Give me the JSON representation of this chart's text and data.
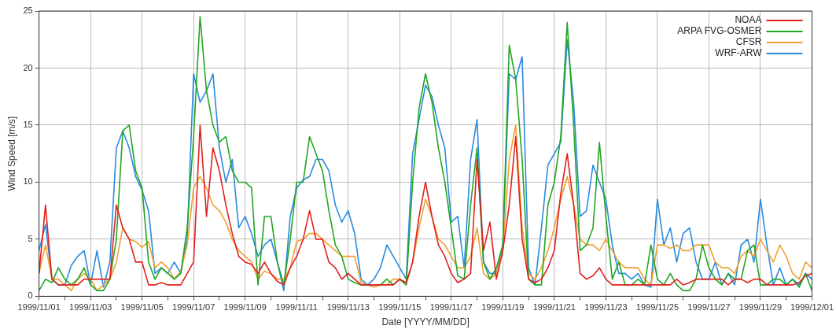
{
  "chart_data": {
    "type": "line",
    "xlabel": "Date [YYYY/MM/DD]",
    "ylabel": "Wind Speed [m/s]",
    "x": [
      "1999-11-01T00:00",
      "1999-11-01T06:00",
      "1999-11-01T12:00",
      "1999-11-01T18:00",
      "1999-11-02T00:00",
      "1999-11-02T06:00",
      "1999-11-02T12:00",
      "1999-11-02T18:00",
      "1999-11-03T00:00",
      "1999-11-03T06:00",
      "1999-11-03T12:00",
      "1999-11-03T18:00",
      "1999-11-04T00:00",
      "1999-11-04T06:00",
      "1999-11-04T12:00",
      "1999-11-04T18:00",
      "1999-11-05T00:00",
      "1999-11-05T06:00",
      "1999-11-05T12:00",
      "1999-11-05T18:00",
      "1999-11-06T00:00",
      "1999-11-06T06:00",
      "1999-11-06T12:00",
      "1999-11-06T18:00",
      "1999-11-07T00:00",
      "1999-11-07T06:00",
      "1999-11-07T12:00",
      "1999-11-07T18:00",
      "1999-11-08T00:00",
      "1999-11-08T06:00",
      "1999-11-08T12:00",
      "1999-11-08T18:00",
      "1999-11-09T00:00",
      "1999-11-09T06:00",
      "1999-11-09T12:00",
      "1999-11-09T18:00",
      "1999-11-10T00:00",
      "1999-11-10T06:00",
      "1999-11-10T12:00",
      "1999-11-10T18:00",
      "1999-11-11T00:00",
      "1999-11-11T06:00",
      "1999-11-11T12:00",
      "1999-11-11T18:00",
      "1999-11-12T00:00",
      "1999-11-12T06:00",
      "1999-11-12T12:00",
      "1999-11-12T18:00",
      "1999-11-13T00:00",
      "1999-11-13T06:00",
      "1999-11-13T12:00",
      "1999-11-13T18:00",
      "1999-11-14T00:00",
      "1999-11-14T06:00",
      "1999-11-14T12:00",
      "1999-11-14T18:00",
      "1999-11-15T00:00",
      "1999-11-15T06:00",
      "1999-11-15T12:00",
      "1999-11-15T18:00",
      "1999-11-16T00:00",
      "1999-11-16T06:00",
      "1999-11-16T12:00",
      "1999-11-16T18:00",
      "1999-11-17T00:00",
      "1999-11-17T06:00",
      "1999-11-17T12:00",
      "1999-11-17T18:00",
      "1999-11-18T00:00",
      "1999-11-18T06:00",
      "1999-11-18T12:00",
      "1999-11-18T18:00",
      "1999-11-19T00:00",
      "1999-11-19T06:00",
      "1999-11-19T12:00",
      "1999-11-19T18:00",
      "1999-11-20T00:00",
      "1999-11-20T06:00",
      "1999-11-20T12:00",
      "1999-11-20T18:00",
      "1999-11-21T00:00",
      "1999-11-21T06:00",
      "1999-11-21T12:00",
      "1999-11-21T18:00",
      "1999-11-22T00:00",
      "1999-11-22T06:00",
      "1999-11-22T12:00",
      "1999-11-22T18:00",
      "1999-11-23T00:00",
      "1999-11-23T06:00",
      "1999-11-23T12:00",
      "1999-11-23T18:00",
      "1999-11-24T00:00",
      "1999-11-24T06:00",
      "1999-11-24T12:00",
      "1999-11-24T18:00",
      "1999-11-25T00:00",
      "1999-11-25T06:00",
      "1999-11-25T12:00",
      "1999-11-25T18:00",
      "1999-11-26T00:00",
      "1999-11-26T06:00",
      "1999-11-26T12:00",
      "1999-11-26T18:00",
      "1999-11-27T00:00",
      "1999-11-27T06:00",
      "1999-11-27T12:00",
      "1999-11-27T18:00",
      "1999-11-28T00:00",
      "1999-11-28T06:00",
      "1999-11-28T12:00",
      "1999-11-28T18:00",
      "1999-11-29T00:00",
      "1999-11-29T06:00",
      "1999-11-29T12:00",
      "1999-11-29T18:00",
      "1999-11-30T00:00",
      "1999-11-30T06:00",
      "1999-11-30T12:00",
      "1999-11-30T18:00",
      "1999-12-01T00:00"
    ],
    "series": [
      {
        "name": "NOAA",
        "color": "#e0201c",
        "values": [
          2,
          8,
          1.5,
          1,
          1,
          1,
          1,
          1.5,
          1.5,
          1.5,
          1.5,
          1.5,
          8,
          6,
          5,
          3,
          3,
          1,
          1,
          1.2,
          1,
          1,
          1,
          2,
          3,
          15,
          7,
          13,
          11,
          8,
          5.5,
          3.5,
          3,
          2.8,
          2,
          3,
          2,
          1.3,
          1,
          2.5,
          3.5,
          5,
          7.5,
          5,
          5,
          3,
          2.5,
          1.5,
          2,
          1.5,
          1,
          1,
          1,
          1,
          1,
          1,
          1.5,
          1.2,
          3,
          7,
          10,
          7,
          4.5,
          3.5,
          2,
          1.2,
          1.5,
          2,
          12,
          4,
          6.5,
          1.5,
          4,
          8,
          14,
          5,
          1.5,
          1.2,
          1.5,
          2.5,
          4,
          9,
          12.5,
          8,
          2,
          1.5,
          1.8,
          2.5,
          1.5,
          1,
          1,
          1,
          1,
          1,
          1,
          1,
          1,
          1,
          1,
          1.5,
          1,
          1.2,
          1.5,
          1.5,
          1.5,
          1.5,
          1.5,
          1,
          1.5,
          1.5,
          1.2,
          1.5,
          1.5,
          1,
          1,
          1,
          1,
          1,
          1.2,
          1.8,
          2
        ]
      },
      {
        "name": "ARPA FVG-OSMER",
        "color": "#22a522",
        "values": [
          0.5,
          1.5,
          1.2,
          2.5,
          1.5,
          1,
          1.5,
          2.5,
          1,
          0.5,
          0.5,
          1.5,
          5,
          14.5,
          15,
          11,
          9.5,
          3,
          1.5,
          2.5,
          2,
          1.5,
          2,
          6,
          14,
          24.5,
          18,
          15,
          13.5,
          14,
          11,
          10,
          10,
          9.5,
          1,
          7,
          7,
          3,
          1,
          5,
          10,
          10,
          14,
          12.5,
          11,
          7.5,
          4.5,
          3.5,
          1.5,
          1.2,
          1,
          1,
          1,
          1,
          1.5,
          1,
          1.5,
          1,
          10,
          16.5,
          19.5,
          17,
          13,
          10,
          6,
          1.8,
          1.5,
          8,
          13,
          3,
          1.5,
          2.5,
          4.5,
          22,
          19,
          12,
          1.5,
          1,
          1,
          8,
          10,
          14,
          24,
          15,
          4,
          4.5,
          6,
          13.5,
          7,
          1.5,
          3,
          1,
          1,
          1.5,
          1,
          4.5,
          1.5,
          1,
          2,
          1,
          0.5,
          0.5,
          1.5,
          4.5,
          2.5,
          1.5,
          1,
          2,
          1.5,
          1.5,
          4,
          4.5,
          1,
          1,
          1.5,
          1.5,
          1,
          1.5,
          0.8,
          2,
          0.5
        ]
      },
      {
        "name": "CFSR",
        "color": "#f0a030",
        "values": [
          2,
          4.5,
          1.5,
          1.5,
          1,
          0.5,
          1.5,
          2,
          1.5,
          0.5,
          1,
          1.5,
          3,
          6,
          5,
          4.8,
          4.3,
          4.8,
          2.5,
          3,
          2.5,
          1.5,
          2.2,
          4.5,
          9.5,
          10.5,
          9.5,
          8,
          7.5,
          6.5,
          5,
          4,
          3.5,
          3,
          1.5,
          2.2,
          2,
          1.5,
          1.5,
          2.5,
          4.8,
          5,
          5.5,
          5.5,
          5,
          4.5,
          4,
          3.5,
          3.5,
          3.5,
          1.2,
          1,
          0.8,
          1,
          1,
          1.5,
          1.5,
          1,
          3,
          6,
          8.5,
          7,
          5,
          4.5,
          3.5,
          2.5,
          2.5,
          3.5,
          6,
          2,
          1.5,
          2,
          4,
          12,
          15,
          6,
          2,
          1.5,
          2.5,
          4,
          6,
          8.5,
          10.5,
          8,
          5,
          4.5,
          4.5,
          4,
          5,
          4,
          3,
          2.5,
          2.5,
          2.5,
          1.5,
          1,
          4.5,
          4.5,
          4.2,
          4.5,
          4,
          4,
          4.5,
          4.5,
          4.5,
          3,
          2.5,
          2.5,
          2,
          3.5,
          4,
          3.5,
          5,
          4,
          3,
          4.5,
          3.5,
          2,
          1.5,
          3,
          2.5
        ]
      },
      {
        "name": "WRF-ARW",
        "color": "#2a8ae0",
        "values": [
          4,
          6.3,
          1.5,
          1,
          1,
          2.7,
          3.5,
          4,
          1,
          4,
          0.8,
          3,
          13,
          14.5,
          13,
          10.5,
          9.3,
          7.5,
          2,
          2.5,
          2,
          3,
          2,
          5,
          19.5,
          17,
          18,
          19.5,
          13,
          10,
          12,
          6,
          7,
          5.5,
          3.5,
          4.5,
          5,
          3,
          0.5,
          7,
          9.5,
          10.2,
          10.5,
          12,
          12,
          11,
          8,
          6.5,
          7.5,
          5.5,
          1.5,
          1,
          1.5,
          2.5,
          4.5,
          3.5,
          2.5,
          1.5,
          12.5,
          15.5,
          18.5,
          17.5,
          15,
          13,
          6.5,
          7,
          2.5,
          12,
          15.5,
          3,
          2,
          2,
          4.5,
          19.5,
          19,
          21,
          2.5,
          1,
          6,
          11.5,
          12.5,
          13.5,
          22.5,
          17,
          7,
          7.5,
          11.5,
          10,
          8.5,
          4.5,
          2,
          2,
          1.5,
          2,
          1,
          0.8,
          8.5,
          4.5,
          6,
          3,
          5.5,
          6,
          3,
          1.5,
          1.5,
          3,
          1,
          2,
          1,
          4.5,
          5,
          3,
          8.5,
          4.5,
          1,
          2.5,
          1,
          1.5,
          1,
          2,
          1.5
        ]
      }
    ],
    "xlim": [
      "1999-11-01",
      "1999-12-01"
    ],
    "xticks": [
      {
        "value": "1999-11-01",
        "label": "1999/11/01"
      },
      {
        "value": "1999-11-02",
        "label": null
      },
      {
        "value": "1999-11-03",
        "label": "1999/11/03"
      },
      {
        "value": "1999-11-04",
        "label": null
      },
      {
        "value": "1999-11-05",
        "label": "1999/11/05"
      },
      {
        "value": "1999-11-06",
        "label": null
      },
      {
        "value": "1999-11-07",
        "label": "1999/11/07"
      },
      {
        "value": "1999-11-08",
        "label": null
      },
      {
        "value": "1999-11-09",
        "label": "1999/11/09"
      },
      {
        "value": "1999-11-10",
        "label": null
      },
      {
        "value": "1999-11-11",
        "label": "1999/11/11"
      },
      {
        "value": "1999-11-12",
        "label": null
      },
      {
        "value": "1999-11-13",
        "label": "1999/11/13"
      },
      {
        "value": "1999-11-14",
        "label": null
      },
      {
        "value": "1999-11-15",
        "label": "1999/11/15"
      },
      {
        "value": "1999-11-16",
        "label": null
      },
      {
        "value": "1999-11-17",
        "label": "1999/11/17"
      },
      {
        "value": "1999-11-18",
        "label": null
      },
      {
        "value": "1999-11-19",
        "label": "1999/11/19"
      },
      {
        "value": "1999-11-20",
        "label": null
      },
      {
        "value": "1999-11-21",
        "label": "1999/11/21"
      },
      {
        "value": "1999-11-22",
        "label": null
      },
      {
        "value": "1999-11-23",
        "label": "1999/11/23"
      },
      {
        "value": "1999-11-24",
        "label": null
      },
      {
        "value": "1999-11-25",
        "label": "1999/11/25"
      },
      {
        "value": "1999-11-26",
        "label": null
      },
      {
        "value": "1999-11-27",
        "label": "1999/11/27"
      },
      {
        "value": "1999-11-28",
        "label": null
      },
      {
        "value": "1999-11-29",
        "label": "1999/11/29"
      },
      {
        "value": "1999-11-30",
        "label": null
      },
      {
        "value": "1999-12-01",
        "label": "1999/12/01"
      }
    ],
    "ylim": [
      0,
      25
    ],
    "yticks": [
      0,
      5,
      10,
      15,
      20,
      25
    ],
    "grid": true,
    "legend": "top right",
    "marker": "none"
  }
}
